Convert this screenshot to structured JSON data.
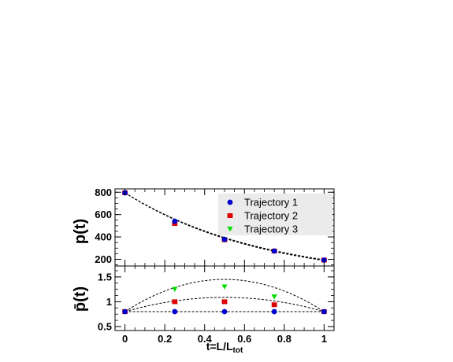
{
  "chart_data": [
    {
      "type": "scatter",
      "panel": "top",
      "ylabel": "p(t)",
      "xlabel": "",
      "xlim": [
        -0.05,
        1.05
      ],
      "ylim": [
        140,
        830
      ],
      "yticks": [
        200,
        400,
        600,
        800
      ],
      "ytick_labels": [
        "200",
        "400",
        "600",
        "800"
      ],
      "x": [
        0,
        0.25,
        0.5,
        0.75,
        1
      ],
      "series": [
        {
          "name": "Trajectory 1",
          "marker": "circle",
          "color": "#0000cc",
          "values": [
            795,
            540,
            378,
            274,
            193
          ]
        },
        {
          "name": "Trajectory 2",
          "marker": "square",
          "color": "#dd0000",
          "values": [
            795,
            520,
            374,
            274,
            193
          ]
        },
        {
          "name": "Trajectory 3",
          "marker": "triangle-down",
          "color": "#00dd00",
          "values": [
            795,
            528,
            376,
            274,
            193
          ]
        }
      ],
      "fit_curves": [
        {
          "form": "exponential",
          "a": 795,
          "b": 1.418
        },
        {
          "form": "exponential",
          "a": 795,
          "b": 1.44
        },
        {
          "form": "exponential",
          "a": 795,
          "b": 1.4
        }
      ],
      "legend": {
        "position": "top-right",
        "entries": [
          "Trajectory 1",
          "Trajectory 2",
          "Trajectory 3"
        ]
      }
    },
    {
      "type": "scatter",
      "panel": "bottom",
      "ylabel": "p̄(t)",
      "xlabel": "t=L/L",
      "xlabel_sub": "tot",
      "xlim": [
        -0.05,
        1.05
      ],
      "ylim": [
        0.42,
        1.72
      ],
      "yticks": [
        0.5,
        1,
        1.5
      ],
      "ytick_labels": [
        "0.5",
        "1",
        "1.5"
      ],
      "xticks": [
        0,
        0.2,
        0.4,
        0.6,
        0.8,
        1
      ],
      "xtick_labels": [
        "0",
        "0.2",
        "0.4",
        "0.6",
        "0.8",
        "1"
      ],
      "x": [
        0,
        0.25,
        0.5,
        0.75,
        1
      ],
      "series": [
        {
          "name": "Trajectory 1",
          "marker": "circle",
          "color": "#0000cc",
          "values": [
            0.8,
            0.8,
            0.8,
            0.8,
            0.8
          ]
        },
        {
          "name": "Trajectory 2",
          "marker": "square",
          "color": "#dd0000",
          "values": [
            0.8,
            1.0,
            1.0,
            0.94,
            0.8
          ]
        },
        {
          "name": "Trajectory 3",
          "marker": "triangle-down",
          "color": "#00dd00",
          "values": [
            0.8,
            1.25,
            1.3,
            1.1,
            0.8
          ]
        }
      ],
      "fit_curves": [
        {
          "form": "quadratic",
          "c": [
            0.8,
            0.0,
            0.0
          ]
        },
        {
          "form": "quadratic",
          "c": [
            0.8,
            1.15,
            -1.15
          ]
        },
        {
          "form": "quadratic",
          "c": [
            0.8,
            2.6,
            -2.6
          ]
        }
      ]
    }
  ]
}
